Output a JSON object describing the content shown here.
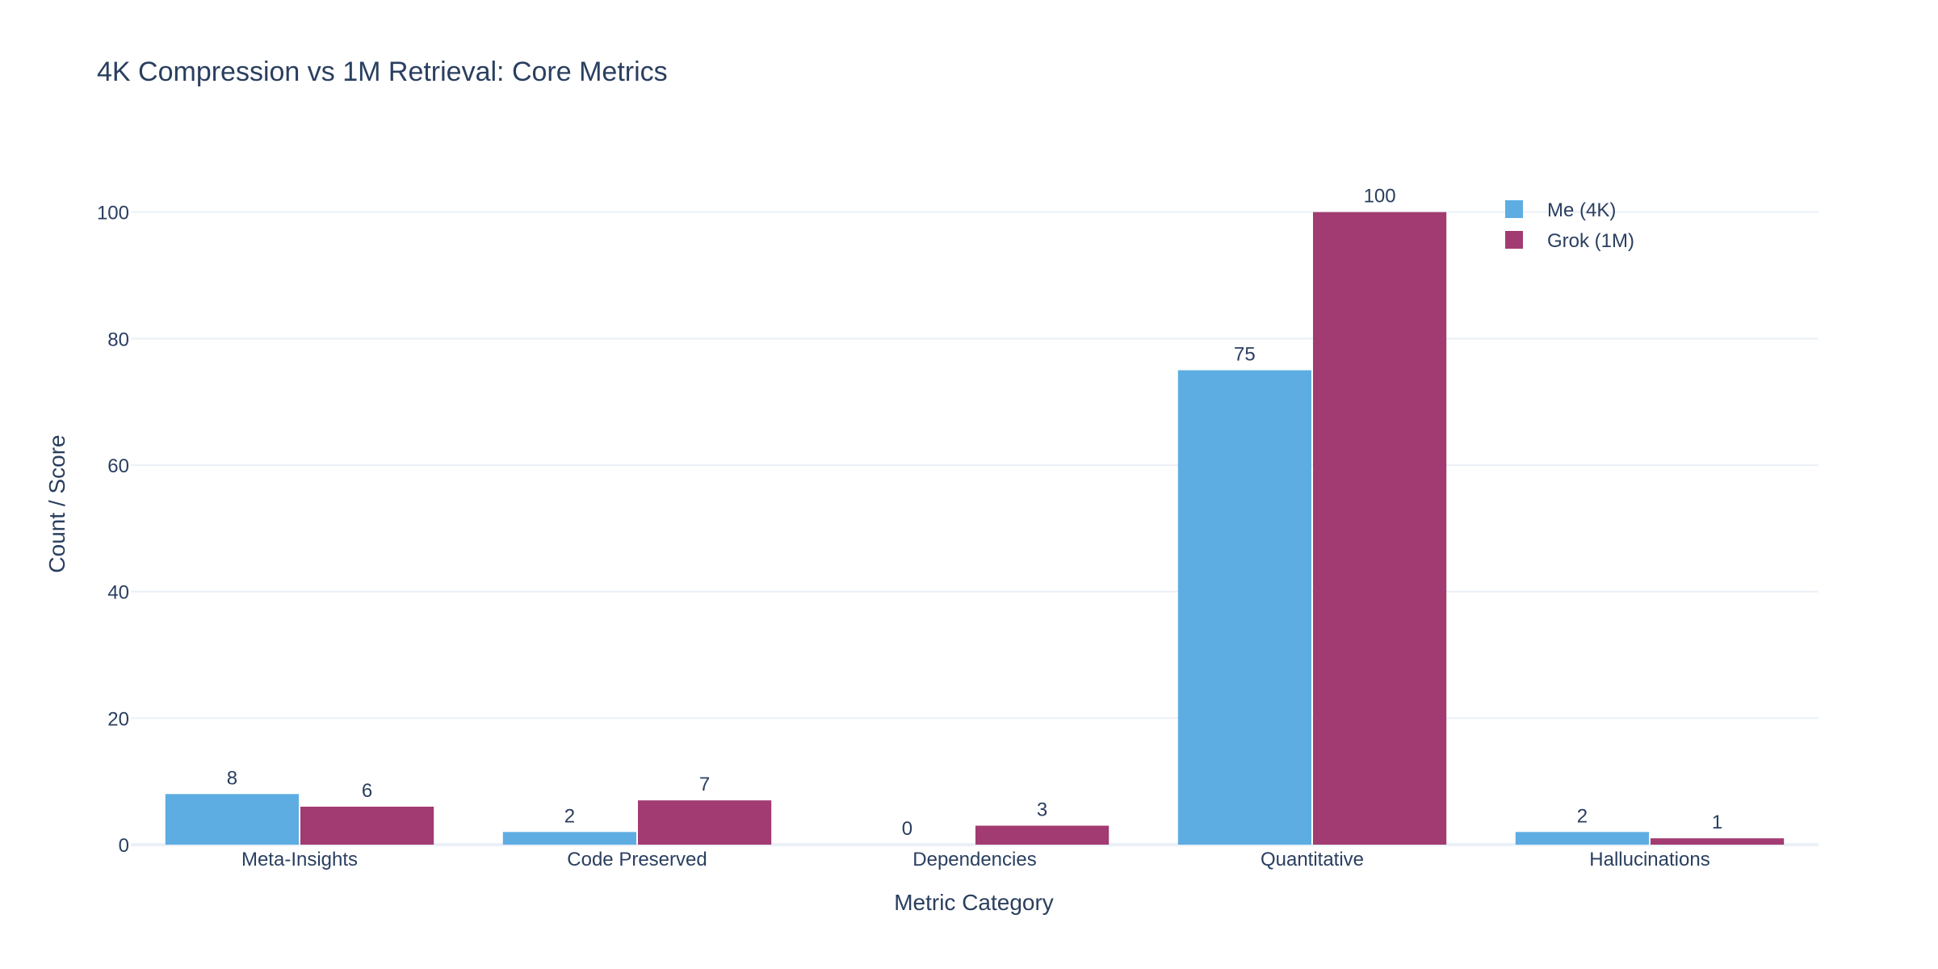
{
  "chart_data": {
    "type": "bar",
    "title": "4K Compression vs 1M Retrieval: Core Metrics",
    "xlabel": "Metric Category",
    "ylabel": "Count / Score",
    "categories": [
      "Meta-Insights",
      "Code Preserved",
      "Dependencies",
      "Quantitative",
      "Hallucinations"
    ],
    "series": [
      {
        "name": "Me (4K)",
        "color": "#5dade2",
        "values": [
          8,
          2,
          0,
          75,
          2
        ]
      },
      {
        "name": "Grok (1M)",
        "color": "#a23b72",
        "values": [
          6,
          7,
          3,
          100,
          1
        ]
      }
    ],
    "ylim": [
      0,
      108
    ],
    "yticks": [
      0,
      20,
      40,
      60,
      80,
      100
    ],
    "grid": true,
    "legend_position": "top-right",
    "data_labels": true
  }
}
